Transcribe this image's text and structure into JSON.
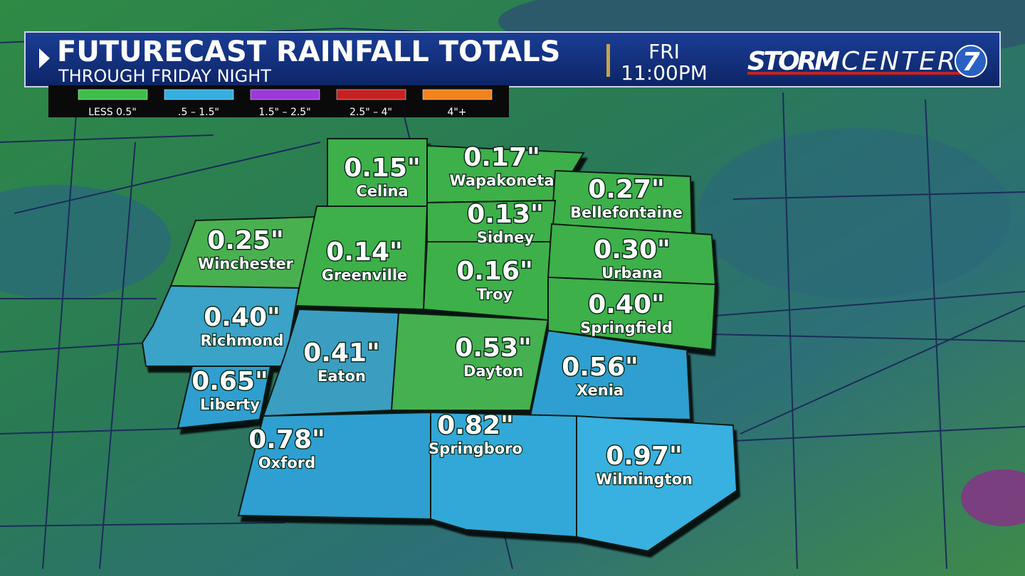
{
  "header": {
    "title": "FUTURECAST RAINFALL TOTALS",
    "subtitle": "THROUGH FRIDAY NIGHT",
    "day": "FRI",
    "time": "11:00PM",
    "logo": {
      "storm": "STORM",
      "center": "CENTER",
      "number": "7"
    }
  },
  "legend": [
    {
      "label": "LESS 0.5\"",
      "color": "#3fbf4a"
    },
    {
      "label": ".5 – 1.5\"",
      "color": "#35aee0"
    },
    {
      "label": "1.5\" – 2.5\"",
      "color": "#9b3ad6"
    },
    {
      "label": "2.5\" – 4\"",
      "color": "#c42222"
    },
    {
      "label": "4\"+",
      "color": "#f2841e"
    }
  ],
  "cities": [
    {
      "name": "Celina",
      "amount": "0.15\""
    },
    {
      "name": "Wapakoneta",
      "amount": "0.17\""
    },
    {
      "name": "Bellefontaine",
      "amount": "0.27\""
    },
    {
      "name": "Sidney",
      "amount": "0.13\""
    },
    {
      "name": "Winchester",
      "amount": "0.25\""
    },
    {
      "name": "Greenville",
      "amount": "0.14\""
    },
    {
      "name": "Troy",
      "amount": "0.16\""
    },
    {
      "name": "Urbana",
      "amount": "0.30\""
    },
    {
      "name": "Springfield",
      "amount": "0.40\""
    },
    {
      "name": "Richmond",
      "amount": "0.40\""
    },
    {
      "name": "Eaton",
      "amount": "0.41\""
    },
    {
      "name": "Dayton",
      "amount": "0.53\""
    },
    {
      "name": "Xenia",
      "amount": "0.56\""
    },
    {
      "name": "Liberty",
      "amount": "0.65\""
    },
    {
      "name": "Oxford",
      "amount": "0.78\""
    },
    {
      "name": "Springboro",
      "amount": "0.82\""
    },
    {
      "name": "Wilmington",
      "amount": "0.97\""
    }
  ]
}
